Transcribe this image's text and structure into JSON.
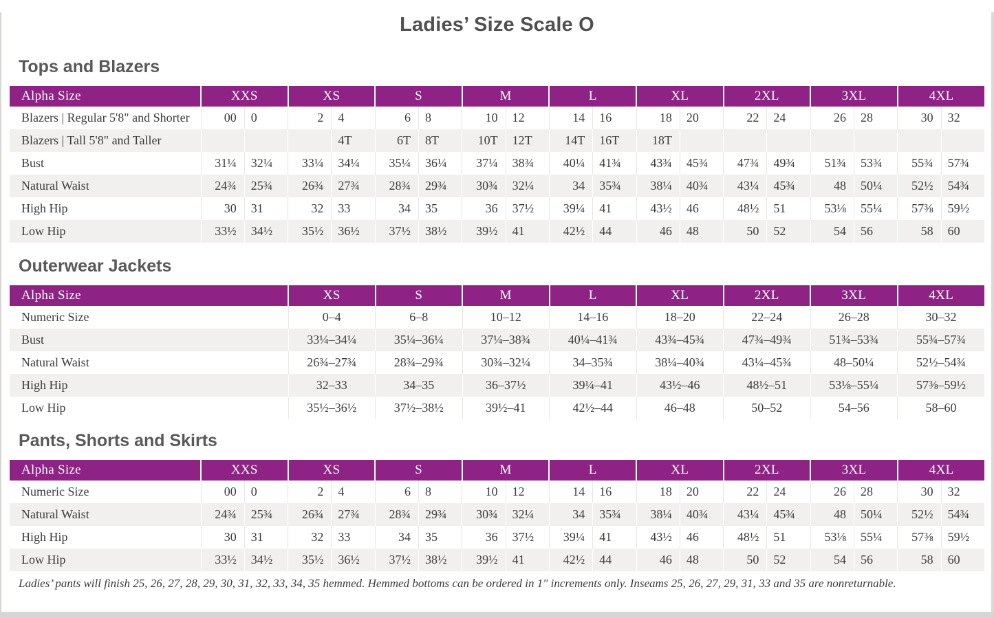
{
  "page": {
    "title": "Ladies’ Size Scale O",
    "footnote": "Ladies’ pants will finish 25, 26, 27, 28, 29, 30, 31, 32, 33, 34, 35 hemmed. Hemmed bottoms can be ordered in 1\" increments only. Inseams 25, 26, 27, 29, 31, 33 and 35 are nonreturnable."
  },
  "colors": {
    "header_bg": "#8E2385",
    "header_text": "#FFFFFF",
    "stripe": "#F2F0EE",
    "text": "#3C3C3C",
    "heading": "#595959"
  },
  "tables": [
    {
      "section_title": "Tops and Blazers",
      "header_label": "Alpha Size",
      "sizes": [
        "XXS",
        "XS",
        "S",
        "M",
        "L",
        "XL",
        "2XL",
        "3XL",
        "4XL"
      ],
      "columns_per_size": 2,
      "rows": [
        {
          "label": "Blazers | Regular 5'8\" and Shorter",
          "values": [
            "00",
            "0",
            "2",
            "4",
            "6",
            "8",
            "10",
            "12",
            "14",
            "16",
            "18",
            "20",
            "22",
            "24",
            "26",
            "28",
            "30",
            "32"
          ]
        },
        {
          "label": "Blazers | Tall 5'8\" and Taller",
          "values": [
            "",
            "",
            "",
            "4T",
            "6T",
            "8T",
            "10T",
            "12T",
            "14T",
            "16T",
            "18T",
            "",
            "",
            "",
            "",
            "",
            "",
            ""
          ]
        },
        {
          "label": "Bust",
          "values": [
            "31¼",
            "32¼",
            "33¼",
            "34¼",
            "35¼",
            "36¼",
            "37¼",
            "38¾",
            "40¼",
            "41¾",
            "43¾",
            "45¾",
            "47¾",
            "49¾",
            "51¾",
            "53¾",
            "55¾",
            "57¾"
          ]
        },
        {
          "label": "Natural Waist",
          "values": [
            "24¾",
            "25¾",
            "26¾",
            "27¾",
            "28¾",
            "29¾",
            "30¾",
            "32¼",
            "34",
            "35¾",
            "38¼",
            "40¾",
            "43¼",
            "45¾",
            "48",
            "50¼",
            "52½",
            "54¾"
          ]
        },
        {
          "label": "High Hip",
          "values": [
            "30",
            "31",
            "32",
            "33",
            "34",
            "35",
            "36",
            "37½",
            "39¼",
            "41",
            "43½",
            "46",
            "48½",
            "51",
            "53⅛",
            "55¼",
            "57⅜",
            "59½"
          ]
        },
        {
          "label": "Low Hip",
          "values": [
            "33½",
            "34½",
            "35½",
            "36½",
            "37½",
            "38½",
            "39½",
            "41",
            "42½",
            "44",
            "46",
            "48",
            "50",
            "52",
            "54",
            "56",
            "58",
            "60"
          ]
        }
      ]
    },
    {
      "section_title": "Outerwear Jackets",
      "header_label": "Alpha Size",
      "sizes": [
        "XS",
        "S",
        "M",
        "L",
        "XL",
        "2XL",
        "3XL",
        "4XL"
      ],
      "columns_per_size": 1,
      "rows": [
        {
          "label": "Numeric Size",
          "values": [
            "0–4",
            "6–8",
            "10–12",
            "14–16",
            "18–20",
            "22–24",
            "26–28",
            "30–32"
          ]
        },
        {
          "label": "Bust",
          "values": [
            "33¼–34¼",
            "35¼–36¼",
            "37¼–38¾",
            "40¼–41¾",
            "43¾–45¾",
            "47¾–49¾",
            "51¾–53¾",
            "55¾–57¾"
          ]
        },
        {
          "label": "Natural Waist",
          "values": [
            "26¾–27¾",
            "28¾–29¾",
            "30¾–32¼",
            "34–35¾",
            "38¼–40¾",
            "43¼–45¾",
            "48–50¼",
            "52½–54¾"
          ]
        },
        {
          "label": "High Hip",
          "values": [
            "32–33",
            "34–35",
            "36–37½",
            "39¼–41",
            "43½–46",
            "48½–51",
            "53⅛–55¼",
            "57⅜–59½"
          ]
        },
        {
          "label": "Low Hip",
          "values": [
            "35½–36½",
            "37½–38½",
            "39½–41",
            "42½–44",
            "46–48",
            "50–52",
            "54–56",
            "58–60"
          ]
        }
      ]
    },
    {
      "section_title": "Pants, Shorts and Skirts",
      "header_label": "Alpha Size",
      "sizes": [
        "XXS",
        "XS",
        "S",
        "M",
        "L",
        "XL",
        "2XL",
        "3XL",
        "4XL"
      ],
      "columns_per_size": 2,
      "rows": [
        {
          "label": "Numeric Size",
          "values": [
            "00",
            "0",
            "2",
            "4",
            "6",
            "8",
            "10",
            "12",
            "14",
            "16",
            "18",
            "20",
            "22",
            "24",
            "26",
            "28",
            "30",
            "32"
          ]
        },
        {
          "label": "Natural Waist",
          "values": [
            "24¾",
            "25¾",
            "26¾",
            "27¾",
            "28¾",
            "29¾",
            "30¾",
            "32¼",
            "34",
            "35¾",
            "38¼",
            "40¾",
            "43¼",
            "45¾",
            "48",
            "50¼",
            "52½",
            "54¾"
          ]
        },
        {
          "label": "High Hip",
          "values": [
            "30",
            "31",
            "32",
            "33",
            "34",
            "35",
            "36",
            "37½",
            "39¼",
            "41",
            "43½",
            "46",
            "48½",
            "51",
            "53⅛",
            "55¼",
            "57⅜",
            "59½"
          ]
        },
        {
          "label": "Low Hip",
          "values": [
            "33½",
            "34½",
            "35½",
            "36½",
            "37½",
            "38½",
            "39½",
            "41",
            "42½",
            "44",
            "46",
            "48",
            "50",
            "52",
            "54",
            "56",
            "58",
            "60"
          ]
        }
      ]
    }
  ]
}
